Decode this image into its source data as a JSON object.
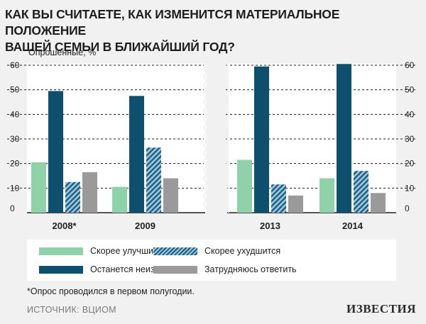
{
  "header": {
    "title_line1": "КАК ВЫ СЧИТАЕТЕ, КАК ИЗМЕНИТСЯ МАТЕРИАЛЬНОЕ ПОЛОЖЕНИЕ",
    "title_line2": "ВАШЕЙ СЕМЬИ В БЛИЖАЙШИЙ ГОД?"
  },
  "chart_data": {
    "type": "bar",
    "ylabel": "Опрошенные, %",
    "ylim": [
      0,
      60
    ],
    "yticks": [
      "0",
      "10",
      "20",
      "30",
      "40",
      "50",
      "60"
    ],
    "categories": [
      "2008*",
      "2009",
      "2013",
      "2014"
    ],
    "axis_break": "between 2009 and 2013",
    "grid": "dashed horizontal lines",
    "series": [
      {
        "name": "Скорее улучшится",
        "color": "#8fd1a8",
        "values": [
          20.5,
          10.5,
          21.5,
          14
        ]
      },
      {
        "name": "Останется неизменным",
        "color": "#0f4f6e",
        "values": [
          49.5,
          47.5,
          59.5,
          60.5
        ]
      },
      {
        "name": "Скорее ухудшится",
        "color": "#1c5e82",
        "pattern": "hatched",
        "values": [
          12.5,
          26.5,
          11.5,
          17
        ]
      },
      {
        "name": "Затрудняюсь ответить",
        "color": "#9a9a9a",
        "values": [
          16.5,
          14,
          7,
          8
        ]
      }
    ]
  },
  "legend": {
    "improve": "Скорее улучшится",
    "worsen": "Скорее ухудшится",
    "unchanged": "Останется неизменным",
    "hard": "Затрудняюсь ответить"
  },
  "footnote": "*Опрос проводился в первом полугодии.",
  "source": "ИСТОЧНИК: ВЦИОМ",
  "brand": "ИЗВЕСТИЯ",
  "colors": {
    "background": "#f1f1f1",
    "panel": "#ffffff",
    "improve": "#8fd1a8",
    "unchanged": "#0f4f6e",
    "worsen": "#1c5e82",
    "hard": "#9a9a9a"
  }
}
